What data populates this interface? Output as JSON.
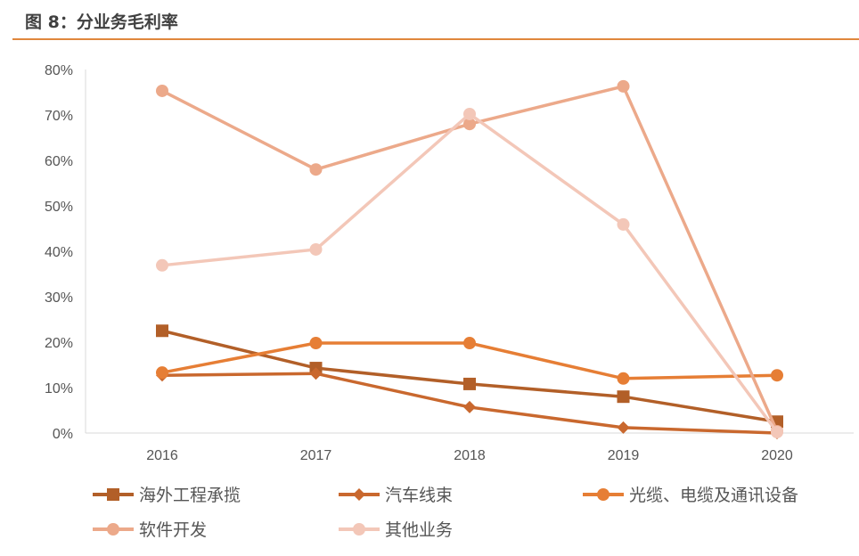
{
  "title": "图 8：分业务毛利率",
  "chart_data": {
    "type": "line",
    "title": "图 8：分业务毛利率",
    "categories": [
      "2016",
      "2017",
      "2018",
      "2019",
      "2020"
    ],
    "ylim": [
      0,
      80
    ],
    "yticks": [
      "0%",
      "10%",
      "20%",
      "30%",
      "40%",
      "50%",
      "60%",
      "70%",
      "80%"
    ],
    "unit": "%",
    "grid": false,
    "legend": "bottom",
    "series": [
      {
        "name": "海外工程承揽",
        "color": "#B25F28",
        "marker": "square",
        "values": [
          22.5,
          14.3,
          10.8,
          8.0,
          2.5
        ]
      },
      {
        "name": "汽车线束",
        "color": "#C9682E",
        "marker": "diamond",
        "values": [
          12.7,
          13.1,
          5.7,
          1.2,
          0.0
        ]
      },
      {
        "name": "光缆、电缆及通讯设备",
        "color": "#E67E35",
        "marker": "circle",
        "values": [
          13.3,
          19.8,
          19.8,
          12.0,
          12.7
        ]
      },
      {
        "name": "软件开发",
        "color": "#ECA98A",
        "marker": "circle",
        "values": [
          75.3,
          58.0,
          68.0,
          76.3,
          0.4
        ]
      },
      {
        "name": "其他业务",
        "color": "#F3C7B8",
        "marker": "circle",
        "values": [
          36.9,
          40.4,
          70.2,
          45.9,
          0.2
        ]
      }
    ]
  }
}
